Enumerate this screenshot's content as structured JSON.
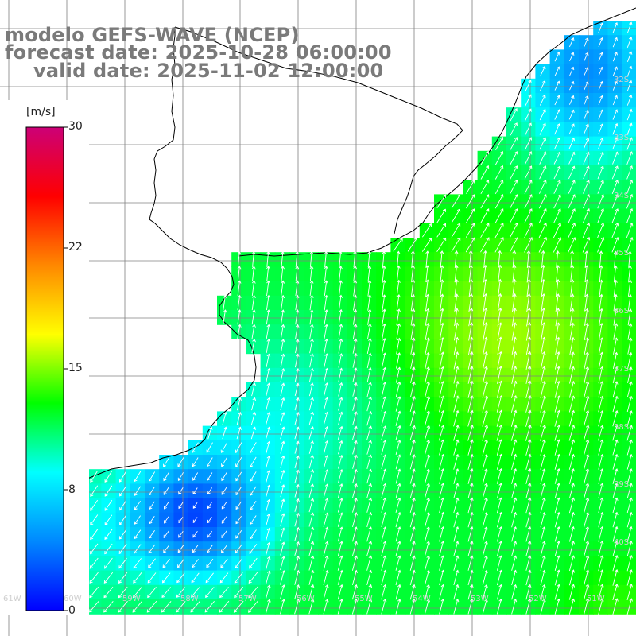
{
  "title": {
    "line1": "modelo GEFS-WAVE (NCEP)",
    "line2": "forecast date: 2025-10-28 06:00:00",
    "line3": "valid date: 2025-11-02 12:00:00"
  },
  "colorbar": {
    "unit": "[m/s]",
    "ticks": [
      "30",
      "22",
      "15",
      "8",
      "0"
    ],
    "min": 0,
    "max": 30,
    "colors": [
      "#0000ff",
      "#0088ff",
      "#00ffff",
      "#00ff00",
      "#ffff00",
      "#ff8800",
      "#ff0000",
      "#cc0077"
    ]
  },
  "colors": {
    "land": "#ffffff",
    "grid": "#808080",
    "coast": "#000000",
    "title": "#7a7a7a"
  },
  "lat_labels": [
    "32S",
    "33S",
    "34S",
    "35S",
    "36S",
    "37S",
    "38S",
    "39S",
    "40S"
  ],
  "lon_labels": [
    "61W",
    "60W",
    "59W",
    "58W",
    "57W",
    "56W",
    "55W",
    "54W",
    "53W",
    "52W",
    "51W"
  ]
}
